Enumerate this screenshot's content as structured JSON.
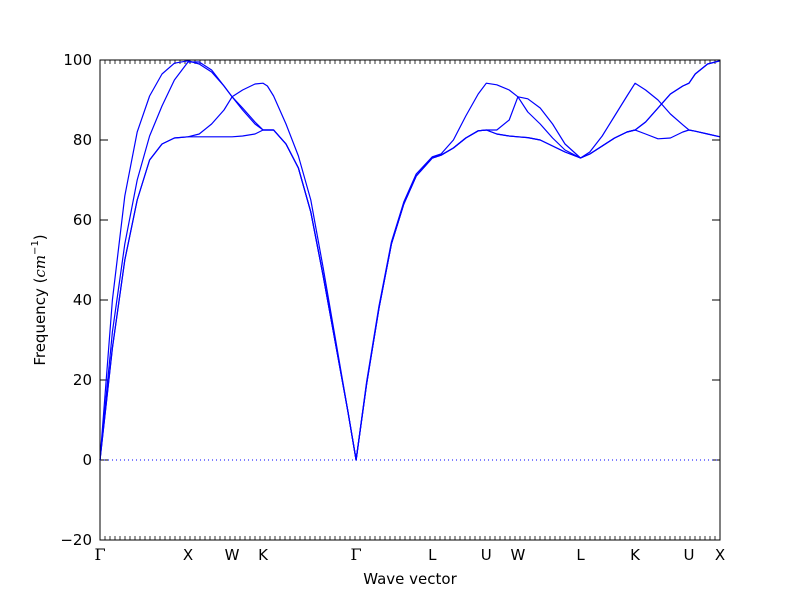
{
  "chart_data": {
    "type": "line",
    "xlabel": "Wave vector",
    "ylabel": {
      "prefix": "Frequency (",
      "unit": "cm",
      "sup": "−1",
      "suffix": ")"
    },
    "ylim": [
      -20,
      100
    ],
    "yticks": [
      -20,
      0,
      20,
      40,
      60,
      80,
      100
    ],
    "xlim": [
      0,
      100
    ],
    "special_points": [
      {
        "label": "Γ",
        "x": 0
      },
      {
        "label": "X",
        "x": 14.2
      },
      {
        "label": "W",
        "x": 21.3
      },
      {
        "label": "K",
        "x": 26.3
      },
      {
        "label": "Γ",
        "x": 41.3
      },
      {
        "label": "L",
        "x": 53.6
      },
      {
        "label": "U",
        "x": 62.3
      },
      {
        "label": "W",
        "x": 67.4
      },
      {
        "label": "L",
        "x": 77.5
      },
      {
        "label": "K",
        "x": 86.3
      },
      {
        "label": "U",
        "x": 95.0
      },
      {
        "label": "X",
        "x": 100
      }
    ],
    "zero_line": true,
    "line_color": "#0000ff",
    "series": [
      {
        "points": [
          [
            0,
            0
          ],
          [
            2,
            32
          ],
          [
            4,
            54
          ],
          [
            6,
            70
          ],
          [
            8,
            81
          ],
          [
            10,
            88.5
          ],
          [
            12,
            95
          ],
          [
            14.2,
            99.5
          ],
          [
            16,
            99.5
          ],
          [
            18,
            97.5
          ],
          [
            20,
            93.5
          ],
          [
            21.3,
            90.8
          ],
          [
            23,
            88
          ],
          [
            25,
            84.5
          ],
          [
            26.3,
            82.5
          ],
          [
            28,
            82.5
          ],
          [
            30,
            79
          ],
          [
            32,
            73
          ],
          [
            34,
            62
          ],
          [
            36,
            46
          ],
          [
            38,
            29
          ],
          [
            40,
            12
          ],
          [
            41.3,
            0
          ],
          [
            43,
            19
          ],
          [
            45,
            38
          ],
          [
            47,
            54
          ],
          [
            49,
            64
          ],
          [
            51,
            71
          ],
          [
            53.6,
            75.5
          ],
          [
            55,
            76.2
          ],
          [
            57,
            78
          ],
          [
            59,
            80.5
          ],
          [
            61,
            82.3
          ],
          [
            62.3,
            82.5
          ],
          [
            64,
            82.5
          ],
          [
            66,
            85
          ],
          [
            67.4,
            90.8
          ],
          [
            69,
            90.3
          ],
          [
            71,
            88
          ],
          [
            73,
            84
          ],
          [
            75,
            79
          ],
          [
            77.5,
            75.5
          ],
          [
            79,
            77
          ],
          [
            81,
            81
          ],
          [
            83,
            86
          ],
          [
            85,
            91
          ],
          [
            86.3,
            94.2
          ],
          [
            88,
            92.5
          ],
          [
            90,
            90
          ],
          [
            92,
            86.5
          ],
          [
            94,
            83.8
          ],
          [
            95,
            82.5
          ],
          [
            96,
            82.2
          ],
          [
            98,
            81.5
          ],
          [
            100,
            80.8
          ]
        ]
      },
      {
        "points": [
          [
            0,
            0
          ],
          [
            2,
            40
          ],
          [
            4,
            66
          ],
          [
            6,
            82
          ],
          [
            8,
            91
          ],
          [
            10,
            96.5
          ],
          [
            12,
            99.2
          ],
          [
            14.2,
            99.8
          ],
          [
            16,
            99
          ],
          [
            18,
            97
          ],
          [
            20,
            93.5
          ],
          [
            21.3,
            90.8
          ],
          [
            23,
            92.5
          ],
          [
            25,
            94
          ],
          [
            26.3,
            94.2
          ],
          [
            27,
            93.5
          ],
          [
            28,
            91
          ],
          [
            30,
            84
          ],
          [
            32,
            76
          ],
          [
            34,
            65
          ],
          [
            36,
            48
          ],
          [
            38,
            30
          ],
          [
            40,
            12
          ],
          [
            41.3,
            0
          ],
          [
            43,
            19.5
          ],
          [
            45,
            38.5
          ],
          [
            47,
            54.5
          ],
          [
            49,
            64.5
          ],
          [
            51,
            71.5
          ],
          [
            53.6,
            75.8
          ],
          [
            55,
            76.5
          ],
          [
            57,
            80
          ],
          [
            59,
            86
          ],
          [
            61,
            91.5
          ],
          [
            62.3,
            94.2
          ],
          [
            64,
            93.8
          ],
          [
            66,
            92.5
          ],
          [
            67.4,
            90.8
          ],
          [
            69,
            87
          ],
          [
            71,
            84
          ],
          [
            73,
            80.5
          ],
          [
            75,
            77.5
          ],
          [
            77.5,
            75.5
          ],
          [
            79,
            76.5
          ],
          [
            81,
            78.5
          ],
          [
            83,
            80.5
          ],
          [
            85,
            82
          ],
          [
            86.3,
            82.5
          ],
          [
            88,
            81.5
          ],
          [
            90,
            80.3
          ],
          [
            92,
            80.5
          ],
          [
            94,
            82
          ],
          [
            95,
            82.5
          ],
          [
            96,
            82.2
          ],
          [
            98,
            81.5
          ],
          [
            100,
            80.8
          ]
        ]
      },
      {
        "points": [
          [
            0,
            0
          ],
          [
            2,
            28
          ],
          [
            4,
            50
          ],
          [
            6,
            65
          ],
          [
            8,
            75
          ],
          [
            10,
            79
          ],
          [
            12,
            80.5
          ],
          [
            14.2,
            80.8
          ],
          [
            16,
            80.8
          ],
          [
            18,
            80.8
          ],
          [
            20,
            80.8
          ],
          [
            21.3,
            80.8
          ],
          [
            23,
            81
          ],
          [
            25,
            81.5
          ],
          [
            26.3,
            82.5
          ],
          [
            28,
            82.5
          ],
          [
            30,
            79
          ],
          [
            32,
            73
          ],
          [
            34,
            62
          ],
          [
            36,
            46
          ],
          [
            38,
            29
          ],
          [
            40,
            12
          ],
          [
            41.3,
            0
          ],
          [
            43,
            19
          ],
          [
            45,
            38
          ],
          [
            47,
            54
          ],
          [
            49,
            64
          ],
          [
            51,
            71
          ],
          [
            53.6,
            75.5
          ],
          [
            55,
            76.2
          ],
          [
            57,
            78
          ],
          [
            59,
            80.5
          ],
          [
            61,
            82.3
          ],
          [
            62.3,
            82.5
          ],
          [
            64,
            81.5
          ],
          [
            66,
            81
          ],
          [
            67.4,
            80.8
          ],
          [
            69,
            80.6
          ],
          [
            71,
            80
          ],
          [
            73,
            78.5
          ],
          [
            75,
            77
          ],
          [
            77.5,
            75.5
          ],
          [
            79,
            76.5
          ],
          [
            81,
            78.5
          ],
          [
            83,
            80.5
          ],
          [
            85,
            82
          ],
          [
            86.3,
            82.5
          ],
          [
            88,
            84.5
          ],
          [
            90,
            88
          ],
          [
            92,
            91.5
          ],
          [
            94,
            93.5
          ],
          [
            95,
            94.2
          ],
          [
            96,
            96.5
          ],
          [
            98,
            99
          ],
          [
            100,
            99.8
          ]
        ]
      },
      {
        "points": [
          [
            0,
            0
          ],
          [
            2,
            28
          ],
          [
            4,
            50
          ],
          [
            6,
            65
          ],
          [
            8,
            75
          ],
          [
            10,
            79
          ],
          [
            12,
            80.5
          ],
          [
            14.2,
            80.8
          ],
          [
            16,
            81.5
          ],
          [
            18,
            84
          ],
          [
            20,
            87.5
          ],
          [
            21.3,
            90.8
          ],
          [
            23,
            87.5
          ],
          [
            25,
            84
          ],
          [
            26.3,
            82.5
          ],
          [
            28,
            82.5
          ],
          [
            30,
            79
          ],
          [
            32,
            73
          ],
          [
            34,
            62
          ],
          [
            36,
            46
          ],
          [
            38,
            29
          ],
          [
            40,
            12
          ],
          [
            41.3,
            0
          ],
          [
            43,
            19
          ],
          [
            45,
            38
          ],
          [
            47,
            54
          ],
          [
            49,
            64
          ],
          [
            51,
            71
          ],
          [
            53.6,
            75.5
          ],
          [
            55,
            76.2
          ],
          [
            57,
            78
          ],
          [
            59,
            80.5
          ],
          [
            61,
            82.3
          ],
          [
            62.3,
            82.5
          ],
          [
            64,
            81.5
          ],
          [
            66,
            81
          ],
          [
            67.4,
            80.8
          ],
          [
            69,
            80.6
          ],
          [
            71,
            80
          ],
          [
            73,
            78.5
          ],
          [
            75,
            77
          ],
          [
            77.5,
            75.5
          ],
          [
            79,
            76.5
          ],
          [
            81,
            78.5
          ],
          [
            83,
            80.5
          ],
          [
            85,
            82
          ],
          [
            86.3,
            82.5
          ],
          [
            88,
            84.5
          ],
          [
            90,
            88
          ],
          [
            92,
            91.5
          ],
          [
            94,
            93.5
          ],
          [
            95,
            94.2
          ],
          [
            96,
            96.5
          ],
          [
            98,
            99
          ],
          [
            100,
            99.8
          ]
        ]
      }
    ]
  }
}
